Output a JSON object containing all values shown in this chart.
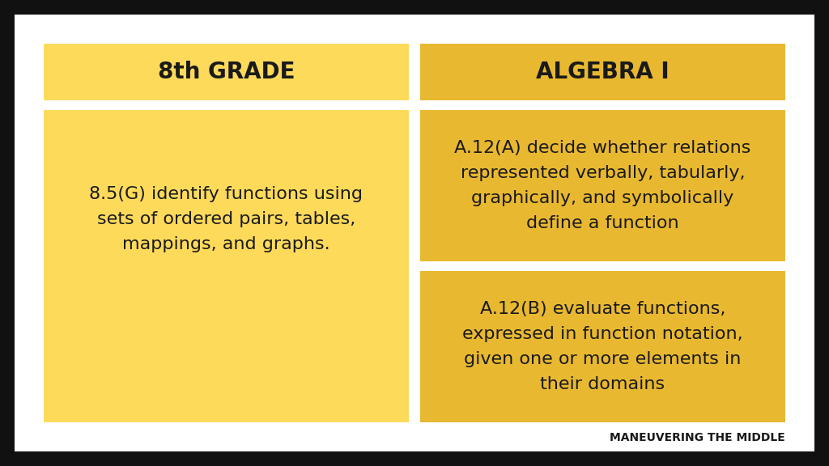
{
  "background_color": "#ffffff",
  "border_color": "#111111",
  "yellow_light": "#FEDA5B",
  "yellow_dark": "#E8B830",
  "text_color": "#1a1a1a",
  "header_left": "8th GRADE",
  "header_right": "ALGEBRA I",
  "body_left": "8.5(G) identify functions using\nsets of ordered pairs, tables,\nmappings, and graphs.",
  "body_right_top": "A.12(A) decide whether relations\nrepresented verbally, tabularly,\ngraphically, and symbolically\ndefine a function",
  "body_right_bottom": "A.12(B) evaluate functions,\nexpressed in function notation,\ngiven one or more elements in\ntheir domains",
  "watermark": "MANEUVERING THE MIDDLE",
  "header_fontsize": 20,
  "body_fontsize": 16,
  "watermark_fontsize": 10
}
